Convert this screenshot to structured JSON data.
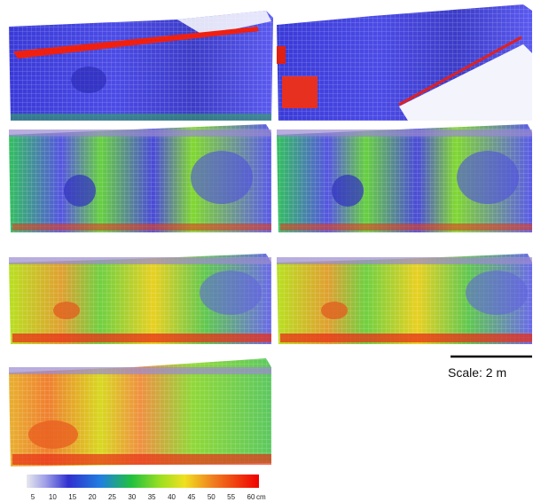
{
  "colorbar": {
    "ticks": [
      5,
      10,
      15,
      20,
      25,
      30,
      35,
      40,
      45,
      50,
      55,
      60
    ],
    "unit": "cm"
  },
  "scale_label": "Scale: 2 m"
}
